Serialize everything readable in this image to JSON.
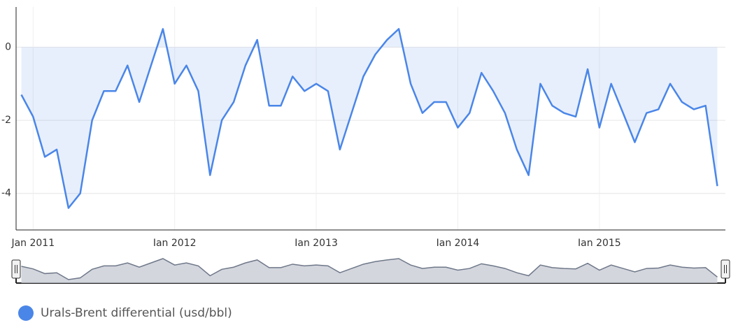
{
  "chart_data": {
    "type": "line",
    "x": [
      2010.917,
      2011,
      2011.083,
      2011.167,
      2011.25,
      2011.333,
      2011.417,
      2011.5,
      2011.583,
      2011.667,
      2011.75,
      2011.833,
      2011.917,
      2012,
      2012.083,
      2012.167,
      2012.25,
      2012.333,
      2012.417,
      2012.5,
      2012.583,
      2012.667,
      2012.75,
      2012.833,
      2012.917,
      2013,
      2013.083,
      2013.167,
      2013.25,
      2013.333,
      2013.417,
      2013.5,
      2013.583,
      2013.667,
      2013.75,
      2013.833,
      2013.917,
      2014,
      2014.083,
      2014.167,
      2014.25,
      2014.333,
      2014.417,
      2014.5,
      2014.583,
      2014.667,
      2014.75,
      2014.833,
      2014.917,
      2015,
      2015.083,
      2015.167,
      2015.25,
      2015.333,
      2015.417,
      2015.5,
      2015.583,
      2015.667,
      2015.75,
      2015.833
    ],
    "series": [
      {
        "name": "Urals-Brent differential (usd/bbl)",
        "color": "#4a86e8",
        "values": [
          -1.3,
          -1.9,
          -3.0,
          -2.8,
          -4.4,
          -4.0,
          -2.0,
          -1.2,
          -1.2,
          -0.5,
          -1.5,
          -0.5,
          0.5,
          -1.0,
          -0.5,
          -1.2,
          -3.5,
          -2.0,
          -1.5,
          -0.5,
          0.2,
          -1.6,
          -1.6,
          -0.8,
          -1.2,
          -1.0,
          -1.2,
          -2.8,
          -1.8,
          -0.8,
          -0.2,
          0.2,
          0.5,
          -1.0,
          -1.8,
          -1.5,
          -1.5,
          -2.2,
          -1.8,
          -0.7,
          -1.2,
          -1.8,
          -2.8,
          -3.5,
          -1.0,
          -1.6,
          -1.8,
          -1.9,
          -0.6,
          -2.2,
          -1.0,
          -1.8,
          -2.6,
          -1.8,
          -1.7,
          -1.0,
          -1.5,
          -1.7,
          -1.6,
          -3.8
        ]
      }
    ],
    "xlim": [
      2010.88,
      2015.89
    ],
    "xticks": [
      {
        "value": 2011,
        "label": "Jan 2011"
      },
      {
        "value": 2012,
        "label": "Jan 2012"
      },
      {
        "value": 2013,
        "label": "Jan 2013"
      },
      {
        "value": 2014,
        "label": "Jan 2014"
      },
      {
        "value": 2015,
        "label": "Jan 2015"
      }
    ],
    "ylim": [
      -5,
      1.1
    ],
    "yticks": [
      -4,
      -2,
      0
    ],
    "grid": true
  }
}
